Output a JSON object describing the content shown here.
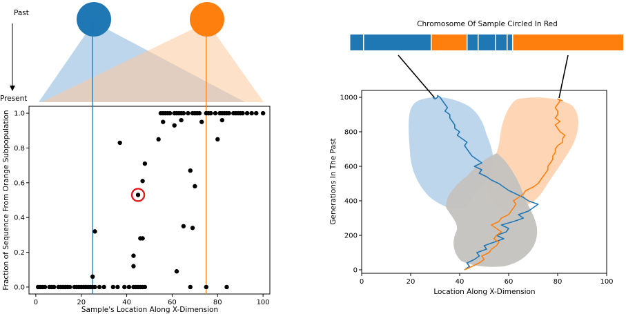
{
  "labels": {
    "past": "Past",
    "present": "Present",
    "chromosome_title": "Chromosome Of Sample Circled In Red"
  },
  "colors": {
    "blue": "#1f77b4",
    "orange": "#ff7f0e",
    "blue_fill": "#a8c8e4",
    "orange_fill": "#fdc89d",
    "overlap_fill": "#c3b8ad",
    "gray_fill": "#c4c2bf",
    "highlight": "#e31a1c"
  },
  "subpopulations": [
    {
      "name": "blue",
      "center_x": 25
    },
    {
      "name": "orange",
      "center_x": 75
    }
  ],
  "chart_data": [
    {
      "type": "scatter",
      "xlabel": "Sample's Location Along X-Dimension",
      "ylabel": "Fraction of Sequence From Orange Subpopulation",
      "xlim": [
        -3,
        103
      ],
      "ylim": [
        -0.04,
        1.04
      ],
      "xticks": [
        0,
        20,
        40,
        60,
        80,
        100
      ],
      "yticks": [
        0.0,
        0.2,
        0.4,
        0.6,
        0.8,
        1.0
      ],
      "xtick_labels": [
        "0",
        "20",
        "40",
        "60",
        "80",
        "100"
      ],
      "ytick_labels": [
        "0.0",
        "0.2",
        "0.4",
        "0.6",
        "0.8",
        "1.0"
      ],
      "vlines": [
        {
          "x": 25,
          "color": "#1f77b4"
        },
        {
          "x": 75,
          "color": "#ff7f0e"
        }
      ],
      "highlighted_point": {
        "x": 45,
        "y": 0.53
      },
      "points": [
        [
          1,
          0
        ],
        [
          2,
          0
        ],
        [
          3,
          0
        ],
        [
          4,
          0
        ],
        [
          6,
          0
        ],
        [
          7,
          0
        ],
        [
          8,
          0
        ],
        [
          10,
          0
        ],
        [
          11,
          0
        ],
        [
          12,
          0
        ],
        [
          13,
          0
        ],
        [
          14,
          0
        ],
        [
          15,
          0
        ],
        [
          17,
          0
        ],
        [
          18,
          0
        ],
        [
          19,
          0
        ],
        [
          20,
          0
        ],
        [
          21,
          0
        ],
        [
          22,
          0
        ],
        [
          23,
          0
        ],
        [
          24,
          0
        ],
        [
          25,
          0
        ],
        [
          26,
          0
        ],
        [
          28,
          0
        ],
        [
          30,
          0
        ],
        [
          34,
          0
        ],
        [
          36,
          0
        ],
        [
          39,
          0
        ],
        [
          41,
          0
        ],
        [
          43,
          0
        ],
        [
          44,
          0
        ],
        [
          45,
          0
        ],
        [
          46,
          0
        ],
        [
          47,
          0
        ],
        [
          48,
          0
        ],
        [
          68,
          0
        ],
        [
          75,
          0
        ],
        [
          84,
          0
        ],
        [
          25,
          0.06
        ],
        [
          26,
          0.32
        ],
        [
          43,
          0.12
        ],
        [
          43,
          0.18
        ],
        [
          46,
          0.28
        ],
        [
          47,
          0.28
        ],
        [
          62,
          0.09
        ],
        [
          65,
          0.35
        ],
        [
          69,
          0.34
        ],
        [
          45,
          0.53
        ],
        [
          47,
          0.61
        ],
        [
          48,
          0.71
        ],
        [
          68,
          0.67
        ],
        [
          70,
          0.58
        ],
        [
          37,
          0.83
        ],
        [
          54,
          0.85
        ],
        [
          80,
          0.85
        ],
        [
          56,
          0.95
        ],
        [
          61,
          0.93
        ],
        [
          64,
          0.96
        ],
        [
          73,
          0.95
        ],
        [
          82,
          0.96
        ],
        [
          55,
          1
        ],
        [
          56,
          1
        ],
        [
          57,
          1
        ],
        [
          58,
          1
        ],
        [
          59,
          1
        ],
        [
          61,
          1
        ],
        [
          62,
          1
        ],
        [
          63,
          1
        ],
        [
          64,
          1
        ],
        [
          65,
          1
        ],
        [
          67,
          1
        ],
        [
          69,
          1
        ],
        [
          70,
          1
        ],
        [
          71,
          1
        ],
        [
          72,
          1
        ],
        [
          75,
          1
        ],
        [
          76,
          1
        ],
        [
          77,
          1
        ],
        [
          79,
          1
        ],
        [
          81,
          1
        ],
        [
          82,
          1
        ],
        [
          83,
          1
        ],
        [
          84,
          1
        ],
        [
          85,
          1
        ],
        [
          87,
          1
        ],
        [
          88,
          1
        ],
        [
          89,
          1
        ],
        [
          90,
          1
        ],
        [
          91,
          1
        ],
        [
          93,
          1
        ],
        [
          95,
          1
        ],
        [
          97,
          1
        ],
        [
          100,
          1
        ]
      ]
    },
    {
      "type": "line",
      "xlabel": "Location Along X-Dimension",
      "ylabel": "Generations In The Past",
      "xlim": [
        0,
        100
      ],
      "ylim": [
        -20,
        1040
      ],
      "xticks": [
        0,
        20,
        40,
        60,
        80,
        100
      ],
      "yticks": [
        0,
        200,
        400,
        600,
        800,
        1000
      ],
      "xtick_labels": [
        "0",
        "20",
        "40",
        "60",
        "80",
        "100"
      ],
      "ytick_labels": [
        "0",
        "200",
        "400",
        "600",
        "800",
        "1000"
      ],
      "series": [
        {
          "color": "#1f77b4",
          "x": [
            42,
            44,
            43,
            46,
            48,
            47,
            51,
            50,
            54,
            58,
            55,
            59,
            60,
            57,
            62,
            66,
            64,
            68,
            70,
            72,
            68,
            66,
            63,
            60,
            58,
            56,
            53,
            51,
            48,
            49,
            46,
            49,
            47,
            45,
            44,
            43,
            42,
            43,
            41,
            39,
            40,
            38,
            38,
            37,
            36,
            36,
            34,
            35,
            34,
            33,
            32,
            31,
            31,
            30,
            29
          ],
          "y": [
            0,
            20,
            40,
            60,
            80,
            100,
            120,
            140,
            160,
            180,
            200,
            220,
            240,
            260,
            280,
            300,
            320,
            340,
            360,
            380,
            400,
            420,
            440,
            460,
            480,
            500,
            520,
            540,
            560,
            580,
            600,
            620,
            640,
            660,
            680,
            700,
            720,
            740,
            760,
            780,
            800,
            820,
            840,
            860,
            880,
            900,
            920,
            940,
            960,
            980,
            1000,
            1010,
            1000,
            990,
            1000
          ]
        },
        {
          "color": "#ff7f0e",
          "x": [
            42,
            45,
            48,
            50,
            49,
            52,
            53,
            55,
            56,
            54,
            55,
            57,
            55,
            53,
            56,
            57,
            60,
            61,
            62,
            63,
            62,
            64,
            66,
            67,
            70,
            72,
            73,
            74,
            75,
            76,
            76,
            77,
            78,
            78,
            79,
            79,
            80,
            82,
            82,
            83,
            81,
            80,
            79,
            81,
            79,
            80,
            80,
            79,
            80,
            81,
            80,
            82
          ],
          "y": [
            0,
            20,
            40,
            60,
            80,
            100,
            120,
            140,
            160,
            180,
            200,
            220,
            240,
            260,
            280,
            300,
            320,
            340,
            360,
            380,
            400,
            420,
            440,
            460,
            480,
            500,
            520,
            540,
            560,
            580,
            600,
            620,
            640,
            660,
            680,
            700,
            720,
            740,
            760,
            780,
            800,
            820,
            840,
            860,
            880,
            900,
            920,
            940,
            960,
            980,
            990,
            980
          ]
        }
      ]
    }
  ],
  "chromosome": {
    "segments": [
      {
        "start": 0,
        "end": 20,
        "color": "#1f77b4"
      },
      {
        "start": 20,
        "end": 118,
        "color": "#1f77b4"
      },
      {
        "start": 118,
        "end": 170,
        "color": "#ff7f0e"
      },
      {
        "start": 170,
        "end": 186,
        "color": "#1f77b4"
      },
      {
        "start": 186,
        "end": 211,
        "color": "#1f77b4"
      },
      {
        "start": 211,
        "end": 228,
        "color": "#1f77b4"
      },
      {
        "start": 228,
        "end": 236,
        "color": "#1f77b4"
      },
      {
        "start": 236,
        "end": 397,
        "color": "#ff7f0e"
      }
    ]
  }
}
